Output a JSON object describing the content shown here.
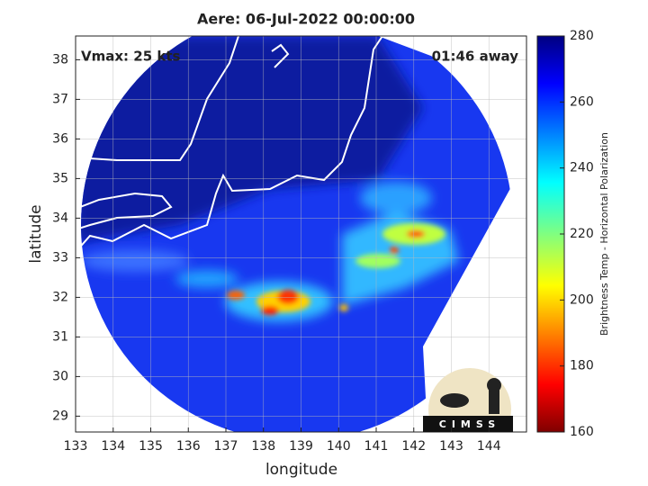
{
  "chart_data": {
    "type": "map",
    "title": "Aere: 06-Jul-2022 00:00:00",
    "annotation_left": "Vmax: 25 kts",
    "annotation_right": "01:46 away",
    "xlabel": "longitude",
    "ylabel": "latitude",
    "xlim": [
      133,
      145
    ],
    "ylim": [
      28.6,
      38.6
    ],
    "xticks": [
      133,
      134,
      135,
      136,
      137,
      138,
      139,
      140,
      141,
      142,
      143,
      144
    ],
    "yticks": [
      29,
      30,
      31,
      32,
      33,
      34,
      35,
      36,
      37,
      38
    ],
    "grid": true,
    "colorbar": {
      "label": "Brightness Temp - Horizontal Polarization",
      "lim": [
        160,
        280
      ],
      "ticks": [
        160,
        180,
        200,
        220,
        240,
        260,
        280
      ],
      "colormap": "jet"
    },
    "logo": "CIMSS"
  }
}
